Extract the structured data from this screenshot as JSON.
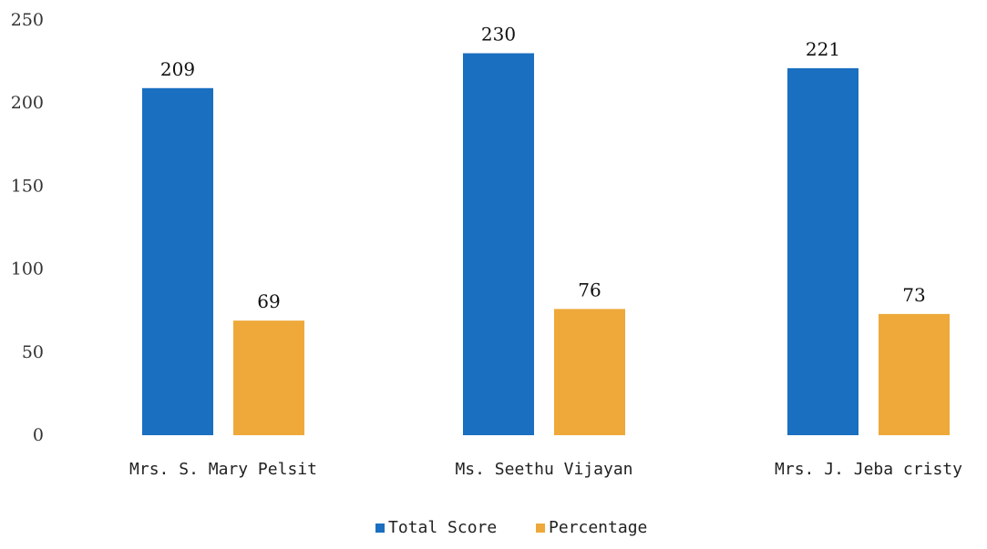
{
  "chart_data": {
    "type": "bar",
    "title": "",
    "xlabel": "",
    "ylabel": "",
    "categories": [
      "Mrs. S. Mary Pelsit",
      "Ms. Seethu Vijayan",
      "Mrs. J. Jeba cristy"
    ],
    "series": [
      {
        "name": "Total Score",
        "values": [
          209,
          230,
          221
        ],
        "color": "#1a6fc0"
      },
      {
        "name": "Percentage",
        "values": [
          69,
          76,
          73
        ],
        "color": "#eea93a"
      }
    ],
    "ylim": [
      0,
      250
    ],
    "yticks": [
      0,
      50,
      100,
      150,
      200,
      250
    ],
    "grid": false,
    "data_labels": true,
    "legend_position": "bottom"
  }
}
